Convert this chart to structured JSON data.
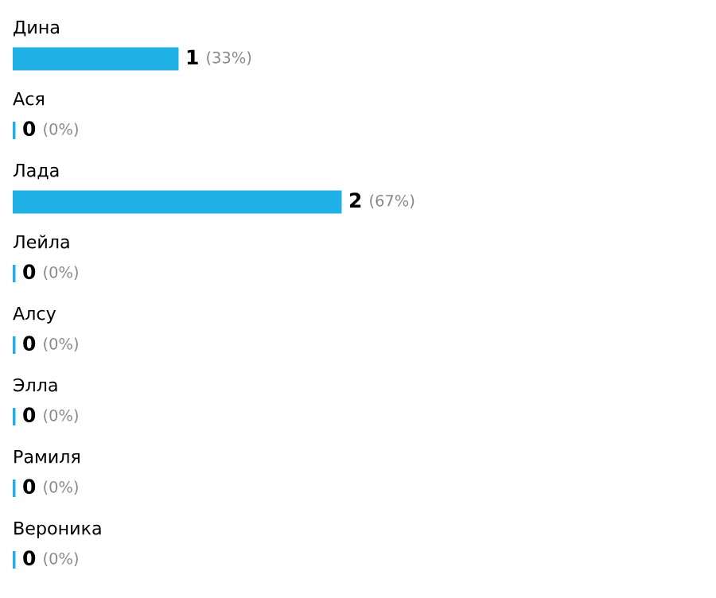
{
  "chart_data": {
    "type": "bar",
    "orientation": "horizontal",
    "categories": [
      "Дина",
      "Ася",
      "Лада",
      "Лейла",
      "Алсу",
      "Элла",
      "Рамиля",
      "Вероника"
    ],
    "values": [
      1,
      0,
      2,
      0,
      0,
      0,
      0,
      0
    ],
    "value_labels": [
      "1 (33%)",
      "0 (0%)",
      "2 (67%)",
      "0 (0%)",
      "0 (0%)",
      "0 (0%)",
      "0 (0%)",
      "0 (0%)"
    ],
    "color": "#1fb0e6"
  }
}
